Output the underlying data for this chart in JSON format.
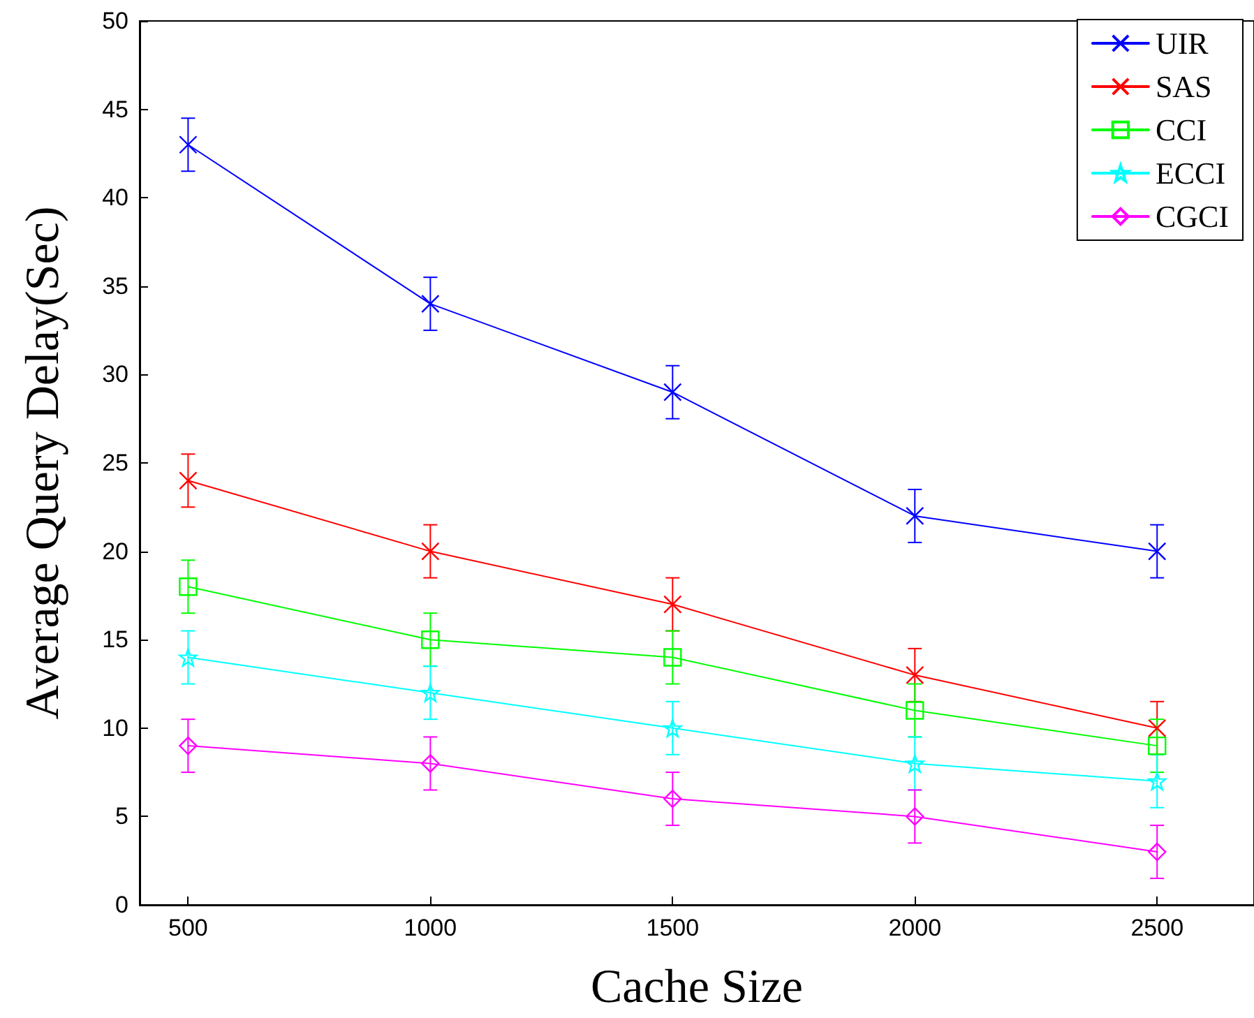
{
  "chart_data": {
    "type": "line",
    "xlabel": "Cache Size",
    "ylabel": "Average Query Delay(Sec)",
    "x": [
      500,
      1000,
      1500,
      2000,
      2500
    ],
    "xlim": [
      400,
      2700
    ],
    "xticks": [
      500,
      1000,
      1500,
      2000,
      2500
    ],
    "ylim": [
      0,
      50
    ],
    "yticks": [
      0,
      5,
      10,
      15,
      20,
      25,
      30,
      35,
      40,
      45,
      50
    ],
    "grid": false,
    "legend": "top right",
    "line_style": "solid",
    "series": [
      {
        "name": "UIR",
        "color": "#0000ff",
        "marker": "cross",
        "values": [
          43,
          34,
          29,
          22,
          20
        ],
        "errors": [
          1.5,
          1.5,
          1.5,
          1.5,
          1.5
        ]
      },
      {
        "name": "SAS",
        "color": "#ff0000",
        "marker": "cross",
        "values": [
          24,
          20,
          17,
          13,
          10
        ],
        "errors": [
          1.5,
          1.5,
          1.5,
          1.5,
          1.5
        ]
      },
      {
        "name": "CCI",
        "color": "#00ff00",
        "marker": "square",
        "values": [
          18,
          15,
          14,
          11,
          9
        ],
        "errors": [
          1.5,
          1.5,
          1.5,
          1.5,
          1.5
        ]
      },
      {
        "name": "ECCI",
        "color": "#00ffff",
        "marker": "star",
        "values": [
          14,
          12,
          10,
          8,
          7
        ],
        "errors": [
          1.5,
          1.5,
          1.5,
          1.5,
          1.5
        ]
      },
      {
        "name": "CGCI",
        "color": "#ff00ff",
        "marker": "diamond",
        "values": [
          9,
          8,
          6,
          5,
          3
        ],
        "errors": [
          1.5,
          1.5,
          1.5,
          1.5,
          1.5
        ]
      }
    ]
  }
}
